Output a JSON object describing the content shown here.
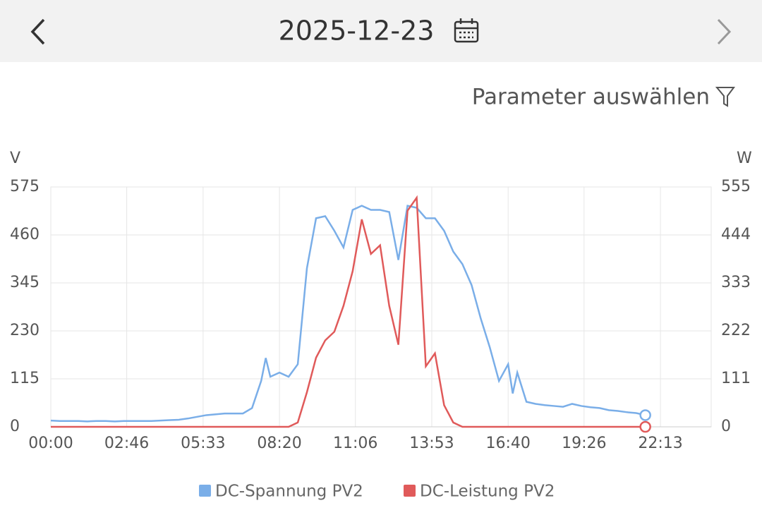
{
  "header": {
    "date": "2025-12-23"
  },
  "filter": {
    "label": "Parameter auswählen"
  },
  "chart_data": {
    "type": "line",
    "y_label": "V",
    "y2_label": "W",
    "x": [
      0,
      20,
      40,
      60,
      80,
      100,
      120,
      140,
      160,
      180,
      200,
      220,
      240,
      260,
      280,
      300,
      340,
      380,
      420,
      440,
      460,
      470,
      480,
      500,
      520,
      540,
      560,
      580,
      600,
      620,
      640,
      660,
      680,
      700,
      720,
      740,
      760,
      780,
      800,
      820,
      840,
      860,
      880,
      900,
      920,
      940,
      960,
      980,
      1000,
      1010,
      1020,
      1040,
      1060,
      1080,
      1100,
      1120,
      1140,
      1160,
      1180,
      1200,
      1220,
      1240,
      1260,
      1280,
      1300
    ],
    "xlim": [
      0,
      1444
    ],
    "xticks": [
      {
        "value": 0,
        "label": "00:00"
      },
      {
        "value": 166,
        "label": "02:46"
      },
      {
        "value": 333,
        "label": "05:33"
      },
      {
        "value": 500,
        "label": "08:20"
      },
      {
        "value": 666,
        "label": "11:06"
      },
      {
        "value": 833,
        "label": "13:53"
      },
      {
        "value": 1000,
        "label": "16:40"
      },
      {
        "value": 1166,
        "label": "19:26"
      },
      {
        "value": 1333,
        "label": "22:13"
      }
    ],
    "ylim": [
      0,
      575
    ],
    "yticks": [
      0,
      115,
      230,
      345,
      460,
      575
    ],
    "y2lim": [
      0,
      555
    ],
    "y2ticks": [
      0,
      111,
      222,
      333,
      444,
      555
    ],
    "grid": true,
    "legend": "bottom",
    "series": [
      {
        "name": "DC-Spannung PV2",
        "color": "#7aaee8",
        "values": [
          15,
          14,
          14,
          14,
          13,
          14,
          14,
          13,
          14,
          14,
          14,
          14,
          15,
          16,
          17,
          20,
          28,
          32,
          32,
          45,
          110,
          165,
          120,
          130,
          120,
          150,
          380,
          500,
          505,
          470,
          430,
          520,
          530,
          520,
          520,
          515,
          400,
          530,
          525,
          500,
          500,
          470,
          420,
          390,
          340,
          260,
          190,
          110,
          150,
          80,
          130,
          60,
          55,
          52,
          50,
          48,
          55,
          50,
          47,
          45,
          40,
          38,
          35,
          33,
          28
        ]
      },
      {
        "name": "DC-Leistung PV2",
        "color": "#e05a5a",
        "axis": "y2",
        "values": [
          0,
          0,
          0,
          0,
          0,
          0,
          0,
          0,
          0,
          0,
          0,
          0,
          0,
          0,
          0,
          0,
          0,
          0,
          0,
          0,
          0,
          0,
          0,
          0,
          0,
          10,
          80,
          160,
          200,
          220,
          280,
          360,
          480,
          400,
          420,
          280,
          190,
          500,
          530,
          140,
          170,
          50,
          10,
          0,
          0,
          0,
          0,
          0,
          0,
          0,
          0,
          0,
          0,
          0,
          0,
          0,
          0,
          0,
          0,
          0,
          0,
          0,
          0,
          0,
          0
        ]
      }
    ]
  }
}
